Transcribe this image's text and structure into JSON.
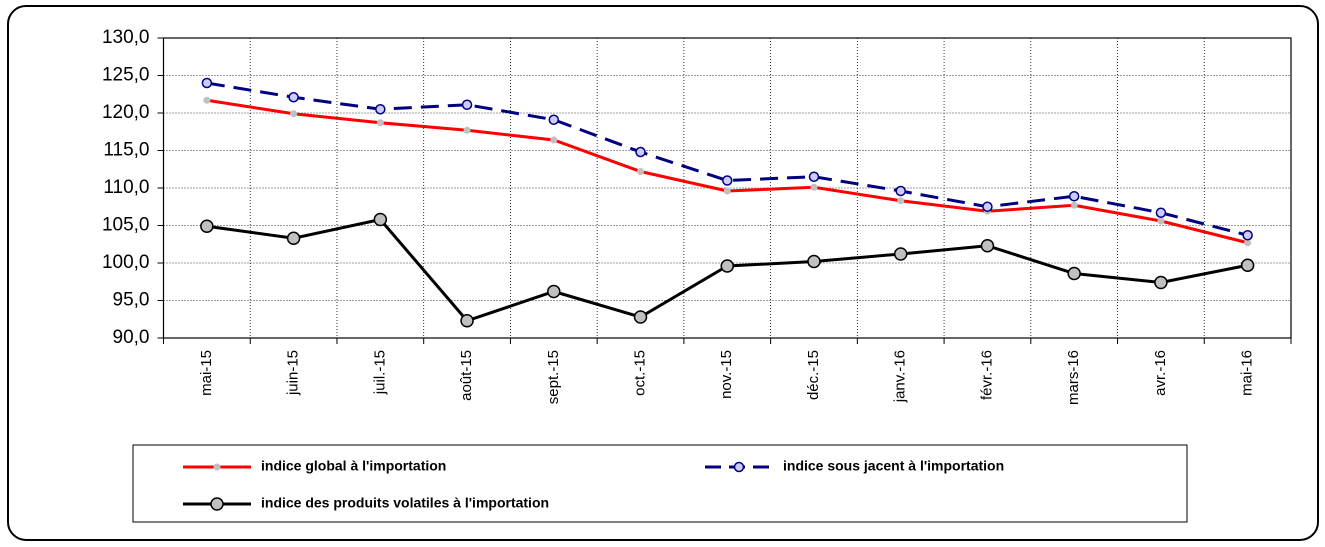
{
  "chart_data": {
    "type": "line",
    "categories": [
      "mai-15",
      "juin-15",
      "juil.-15",
      "août-15",
      "sept.-15",
      "oct.-15",
      "nov.-15",
      "déc.-15",
      "janv.-16",
      "févr.-16",
      "mars-16",
      "avr.-16",
      "mai-16"
    ],
    "series": [
      {
        "name": "indice global à l'importation",
        "color": "#ff0000",
        "marker_fill": "#c0c0c0",
        "dashed": false,
        "values": [
          121.7,
          119.9,
          118.7,
          117.7,
          116.4,
          112.2,
          109.6,
          110.1,
          108.3,
          106.9,
          107.7,
          105.6,
          102.7
        ]
      },
      {
        "name": "indice sous jacent à l'importation",
        "color": "#000080",
        "marker_fill": "#ccccff",
        "dashed": true,
        "values": [
          124.0,
          122.1,
          120.5,
          121.1,
          119.1,
          114.8,
          111.0,
          111.5,
          109.6,
          107.5,
          108.9,
          106.7,
          103.7
        ]
      },
      {
        "name": "indice des produits volatiles à l'importation",
        "color": "#000000",
        "marker_fill": "#c0c0c0",
        "dashed": false,
        "values": [
          104.9,
          103.3,
          105.8,
          92.3,
          96.2,
          92.8,
          99.6,
          100.2,
          101.2,
          102.3,
          98.6,
          97.4,
          99.7
        ]
      }
    ],
    "ylim": [
      90,
      130
    ],
    "yticks": [
      {
        "value": 90,
        "label": "90,0"
      },
      {
        "value": 95,
        "label": "95,0"
      },
      {
        "value": 100,
        "label": "100,0"
      },
      {
        "value": 105,
        "label": "105,0"
      },
      {
        "value": 110,
        "label": "110,0"
      },
      {
        "value": 115,
        "label": "115,0"
      },
      {
        "value": 120,
        "label": "120,0"
      },
      {
        "value": 125,
        "label": "125,0"
      },
      {
        "value": 130,
        "label": "130,0"
      }
    ],
    "grid": true
  }
}
